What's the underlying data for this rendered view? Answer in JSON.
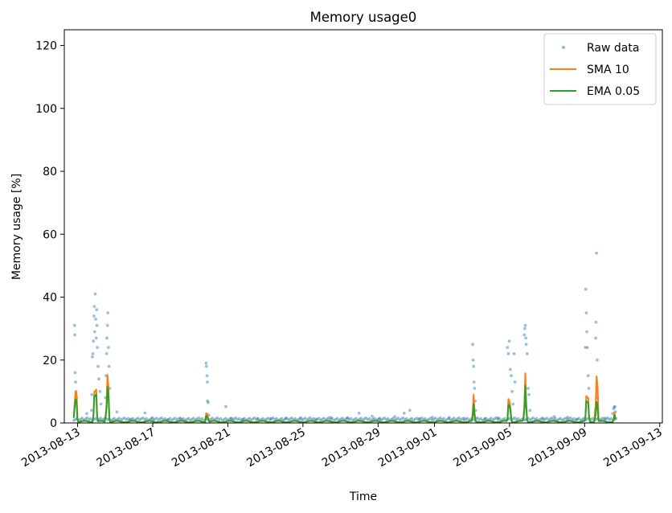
{
  "chart_data": {
    "type": "line",
    "title": "Memory usage0",
    "xlabel": "Time",
    "ylabel": "Memory usage [%]",
    "ylim": [
      0,
      125
    ],
    "xlim": [
      "2013-08-12",
      "2013-09-13"
    ],
    "y_ticks": [
      0,
      20,
      40,
      60,
      80,
      100,
      120
    ],
    "x_ticks": [
      "2013-08-13",
      "2013-08-17",
      "2013-08-21",
      "2013-08-25",
      "2013-08-29",
      "2013-09-01",
      "2013-09-05",
      "2013-09-09",
      "2013-09-13"
    ],
    "x_tick_days": [
      0.71,
      4.71,
      8.71,
      12.71,
      16.71,
      19.71,
      23.71,
      27.71,
      31.71
    ],
    "x_range_days": [
      0,
      31.85
    ],
    "grid": false,
    "legend_position": "top-right",
    "colors": {
      "raw": "#1f77b4",
      "sma": "#ff7f0e",
      "ema": "#2ca02c"
    },
    "series": [
      {
        "name": "Raw data",
        "style": "points",
        "color": "#1f77b4",
        "points": [
          [
            0.55,
            31
          ],
          [
            0.56,
            28
          ],
          [
            0.58,
            16
          ],
          [
            0.6,
            13
          ],
          [
            0.62,
            10
          ],
          [
            0.65,
            8
          ],
          [
            1.2,
            3
          ],
          [
            1.45,
            4
          ],
          [
            1.47,
            9
          ],
          [
            1.5,
            21
          ],
          [
            1.52,
            22
          ],
          [
            1.55,
            26
          ],
          [
            1.58,
            34
          ],
          [
            1.6,
            37
          ],
          [
            1.62,
            29
          ],
          [
            1.65,
            41
          ],
          [
            1.67,
            33
          ],
          [
            1.7,
            27
          ],
          [
            1.72,
            36
          ],
          [
            1.74,
            31
          ],
          [
            1.76,
            24
          ],
          [
            1.8,
            18
          ],
          [
            1.84,
            14
          ],
          [
            1.9,
            10
          ],
          [
            1.95,
            6
          ],
          [
            2.2,
            8
          ],
          [
            2.22,
            15
          ],
          [
            2.25,
            22
          ],
          [
            2.27,
            27
          ],
          [
            2.3,
            31
          ],
          [
            2.32,
            35
          ],
          [
            2.35,
            24
          ],
          [
            2.38,
            18
          ],
          [
            2.42,
            11
          ],
          [
            2.8,
            3.5
          ],
          [
            3.5,
            1.2
          ],
          [
            4.3,
            3.2
          ],
          [
            4.7,
            1.6
          ],
          [
            5.5,
            1
          ],
          [
            6.2,
            1.2
          ],
          [
            7.55,
            19
          ],
          [
            7.57,
            18
          ],
          [
            7.6,
            15
          ],
          [
            7.62,
            13
          ],
          [
            7.63,
            7
          ],
          [
            7.66,
            6.5
          ],
          [
            7.7,
            2.5
          ],
          [
            8.6,
            5.2
          ],
          [
            8.9,
            1.4
          ],
          [
            9.5,
            1.1
          ],
          [
            10.3,
            1.3
          ],
          [
            11.0,
            1.4
          ],
          [
            11.8,
            1.5
          ],
          [
            12.6,
            1.6
          ],
          [
            13.4,
            1.2
          ],
          [
            14.2,
            1.7
          ],
          [
            15.1,
            1.5
          ],
          [
            15.7,
            3.1
          ],
          [
            16.4,
            2.1
          ],
          [
            16.8,
            1.2
          ],
          [
            17.6,
            2.0
          ],
          [
            18.1,
            3.1
          ],
          [
            18.4,
            4.0
          ],
          [
            18.9,
            1.3
          ],
          [
            19.6,
            1.8
          ],
          [
            20.5,
            1.7
          ],
          [
            21.3,
            1.5
          ],
          [
            21.75,
            25
          ],
          [
            21.77,
            20
          ],
          [
            21.8,
            18
          ],
          [
            21.82,
            13
          ],
          [
            21.85,
            11
          ],
          [
            21.88,
            7
          ],
          [
            21.9,
            4
          ],
          [
            22.4,
            1.4
          ],
          [
            23.1,
            1.6
          ],
          [
            23.6,
            24
          ],
          [
            23.65,
            22
          ],
          [
            23.7,
            26
          ],
          [
            23.75,
            17
          ],
          [
            23.8,
            15
          ],
          [
            23.85,
            10
          ],
          [
            23.9,
            6
          ],
          [
            23.95,
            22
          ],
          [
            24.0,
            13
          ],
          [
            24.5,
            28
          ],
          [
            24.52,
            30
          ],
          [
            24.55,
            31
          ],
          [
            24.58,
            27
          ],
          [
            24.6,
            25
          ],
          [
            24.65,
            22
          ],
          [
            24.7,
            11
          ],
          [
            24.75,
            9
          ],
          [
            24.8,
            4
          ],
          [
            25.5,
            1.5
          ],
          [
            26.1,
            2.0
          ],
          [
            26.8,
            1.8
          ],
          [
            27.3,
            1.2
          ],
          [
            27.75,
            24
          ],
          [
            27.77,
            42.5
          ],
          [
            27.8,
            35
          ],
          [
            27.83,
            29
          ],
          [
            27.86,
            24
          ],
          [
            27.9,
            15
          ],
          [
            27.93,
            11
          ],
          [
            28.3,
            27
          ],
          [
            28.32,
            32
          ],
          [
            28.35,
            54
          ],
          [
            28.38,
            20
          ],
          [
            28.4,
            8
          ],
          [
            28.8,
            1.5
          ],
          [
            29.2,
            3.0
          ],
          [
            29.25,
            4.5
          ],
          [
            29.3,
            5.0
          ],
          [
            29.32,
            5.2
          ],
          [
            29.35,
            3.5
          ]
        ],
        "baseline_level": 0.8
      },
      {
        "name": "SMA 10",
        "style": "line",
        "color": "#ff7f0e",
        "peaks": [
          [
            0.6,
            16
          ],
          [
            1.65,
            20
          ],
          [
            2.3,
            20
          ],
          [
            7.6,
            5
          ],
          [
            21.8,
            9
          ],
          [
            23.7,
            13
          ],
          [
            24.55,
            16
          ],
          [
            27.85,
            16
          ],
          [
            28.35,
            20
          ],
          [
            29.3,
            3.5
          ]
        ],
        "baseline_level": 0.5
      },
      {
        "name": "EMA 0.05",
        "style": "line",
        "color": "#2ca02c",
        "peaks": [
          [
            0.6,
            12
          ],
          [
            1.65,
            17
          ],
          [
            2.3,
            15
          ],
          [
            7.6,
            3.5
          ],
          [
            21.8,
            6
          ],
          [
            23.7,
            10
          ],
          [
            24.55,
            12
          ],
          [
            27.85,
            13
          ],
          [
            28.35,
            9
          ],
          [
            29.3,
            2.5
          ]
        ],
        "baseline_level": 0.4
      }
    ]
  }
}
